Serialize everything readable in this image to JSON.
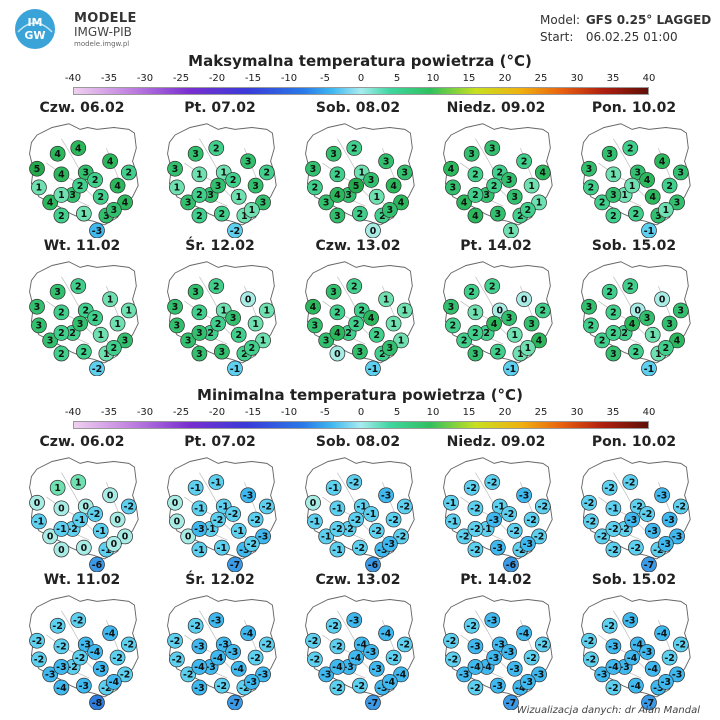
{
  "header": {
    "brand_logo_text": "IM GW",
    "brand_name": "MODELE",
    "brand_sub": "IMGW-PIB",
    "brand_url": "modele.imgw.pl",
    "model_label": "Model:",
    "model_value": "GFS 0.25° LAGGED",
    "start_label": "Start:",
    "start_value": "06.02.25  01:00"
  },
  "max_section": {
    "title": "Maksymalna temperatura powietrza (°C)",
    "scale_ticks": [
      "-40",
      "-35",
      "-30",
      "-25",
      "-20",
      "-15",
      "-10",
      "-5",
      "0",
      "5",
      "10",
      "15",
      "20",
      "25",
      "30",
      "35",
      "40"
    ],
    "days": [
      {
        "label": "Czw. 06.02",
        "values": [
          5,
          4,
          4,
          4,
          2,
          1,
          4,
          3,
          4,
          4,
          3,
          2,
          4,
          2,
          1,
          3,
          2,
          2,
          1,
          3,
          -3
        ]
      },
      {
        "label": "Pt. 07.02",
        "values": [
          3,
          3,
          2,
          3,
          2,
          1,
          1,
          1,
          3,
          3,
          3,
          1,
          3,
          2,
          2,
          1,
          3,
          2,
          2,
          1,
          -2
        ]
      },
      {
        "label": "Sob. 08.02",
        "values": [
          3,
          3,
          2,
          3,
          3,
          2,
          2,
          1,
          4,
          3,
          3,
          1,
          4,
          3,
          2,
          2,
          5,
          3,
          4,
          3,
          0
        ]
      },
      {
        "label": "Niedz. 09.02",
        "values": [
          4,
          3,
          3,
          2,
          4,
          3,
          2,
          2,
          1,
          4,
          3,
          3,
          1,
          4,
          3,
          2,
          2,
          3,
          2,
          2,
          1
        ]
      },
      {
        "label": "Pon. 10.02",
        "values": [
          3,
          3,
          2,
          4,
          3,
          2,
          1,
          3,
          2,
          2,
          1,
          4,
          3,
          2,
          2,
          3,
          1,
          4,
          3,
          1,
          -1
        ]
      },
      {
        "label": "Wt. 11.02",
        "values": [
          3,
          3,
          2,
          1,
          1,
          3,
          2,
          2,
          1,
          3,
          2,
          1,
          3,
          2,
          2,
          1,
          3,
          2,
          2,
          2,
          -2
        ]
      },
      {
        "label": "Śr. 12.02",
        "values": [
          3,
          3,
          2,
          0,
          1,
          3,
          2,
          1,
          1,
          3,
          2,
          2,
          1,
          3,
          3,
          2,
          2,
          3,
          3,
          2,
          -1
        ]
      },
      {
        "label": "Czw. 13.02",
        "values": [
          4,
          3,
          2,
          1,
          1,
          3,
          2,
          2,
          1,
          3,
          2,
          2,
          1,
          0,
          3,
          2,
          2,
          4,
          4,
          3,
          -1
        ]
      },
      {
        "label": "Pt. 14.02",
        "values": [
          3,
          2,
          2,
          0,
          2,
          2,
          1,
          0,
          3,
          2,
          2,
          1,
          4,
          3,
          2,
          1,
          4,
          3,
          2,
          1,
          -1
        ]
      },
      {
        "label": "Sob. 15.02",
        "values": [
          3,
          2,
          2,
          0,
          3,
          2,
          2,
          0,
          3,
          2,
          2,
          1,
          4,
          3,
          2,
          1,
          4,
          3,
          2,
          2,
          -1
        ]
      }
    ]
  },
  "min_section": {
    "title": "Minimalna temperatura powietrza (°C)",
    "scale_ticks": [
      "-40",
      "-35",
      "-30",
      "-25",
      "-20",
      "-15",
      "-10",
      "-5",
      "0",
      "5",
      "10",
      "15",
      "20",
      "25",
      "30",
      "35",
      "40"
    ],
    "days": [
      {
        "label": "Czw. 06.02",
        "values": [
          0,
          1,
          1,
          0,
          -2,
          -1,
          0,
          0,
          0,
          0,
          -2,
          -1,
          0,
          0,
          0,
          -1,
          -1,
          -2,
          -1,
          0,
          -6
        ]
      },
      {
        "label": "Pt. 07.02",
        "values": [
          0,
          -1,
          -1,
          -3,
          -2,
          0,
          -1,
          -1,
          -2,
          0,
          -1,
          -1,
          -3,
          -1,
          -1,
          -3,
          -2,
          -2,
          -3,
          -2,
          -7
        ]
      },
      {
        "label": "Sob. 08.02",
        "values": [
          0,
          -1,
          -2,
          -3,
          -2,
          -1,
          -1,
          -1,
          -2,
          -1,
          -2,
          -2,
          -2,
          -1,
          -2,
          -3,
          -2,
          -1,
          -2,
          -3,
          -6
        ]
      },
      {
        "label": "Niedz. 09.02",
        "values": [
          -1,
          -2,
          -2,
          -3,
          -2,
          -1,
          -2,
          -1,
          -2,
          -2,
          -1,
          -2,
          -2,
          -2,
          -3,
          -2,
          -3,
          -2,
          -2,
          -3,
          -6
        ]
      },
      {
        "label": "Pon. 10.02",
        "values": [
          -2,
          -2,
          -2,
          -3,
          -2,
          -2,
          -1,
          -2,
          -3,
          -2,
          -2,
          -3,
          -3,
          -2,
          -2,
          -2,
          -3,
          -2,
          -2,
          -3,
          -7
        ]
      },
      {
        "label": "Wt. 11.02",
        "values": [
          -2,
          -2,
          -2,
          -4,
          -2,
          -2,
          -2,
          -3,
          -2,
          -3,
          -2,
          -3,
          -2,
          -4,
          -3,
          -2,
          -2,
          -4,
          -3,
          -4,
          -8
        ]
      },
      {
        "label": "Śr. 12.02",
        "values": [
          -2,
          -2,
          -3,
          -4,
          -2,
          -2,
          -3,
          -3,
          -2,
          -2,
          -3,
          -4,
          -3,
          -3,
          -2,
          -2,
          -4,
          -3,
          -4,
          -3,
          -7
        ]
      },
      {
        "label": "Czw. 13.02",
        "values": [
          -2,
          -2,
          -3,
          -4,
          -2,
          -2,
          -2,
          -4,
          -2,
          -3,
          -3,
          -3,
          -4,
          -2,
          -2,
          -3,
          -4,
          -3,
          -4,
          -4,
          -7
        ]
      },
      {
        "label": "Pt. 14.02",
        "values": [
          -2,
          -2,
          -3,
          -4,
          -2,
          -2,
          -3,
          -3,
          -2,
          -3,
          -4,
          -3,
          -3,
          -2,
          -3,
          -4,
          -3,
          -3,
          -4,
          -3,
          -7
        ]
      },
      {
        "label": "Sob. 15.02",
        "values": [
          -2,
          -2,
          -3,
          -4,
          -2,
          -2,
          -3,
          -4,
          -2,
          -3,
          -3,
          -4,
          -3,
          -2,
          -4,
          -3,
          -4,
          -3,
          -4,
          -3,
          -7
        ]
      }
    ]
  },
  "credit": "Wizualizacja danych: dr Alan Mandal"
}
